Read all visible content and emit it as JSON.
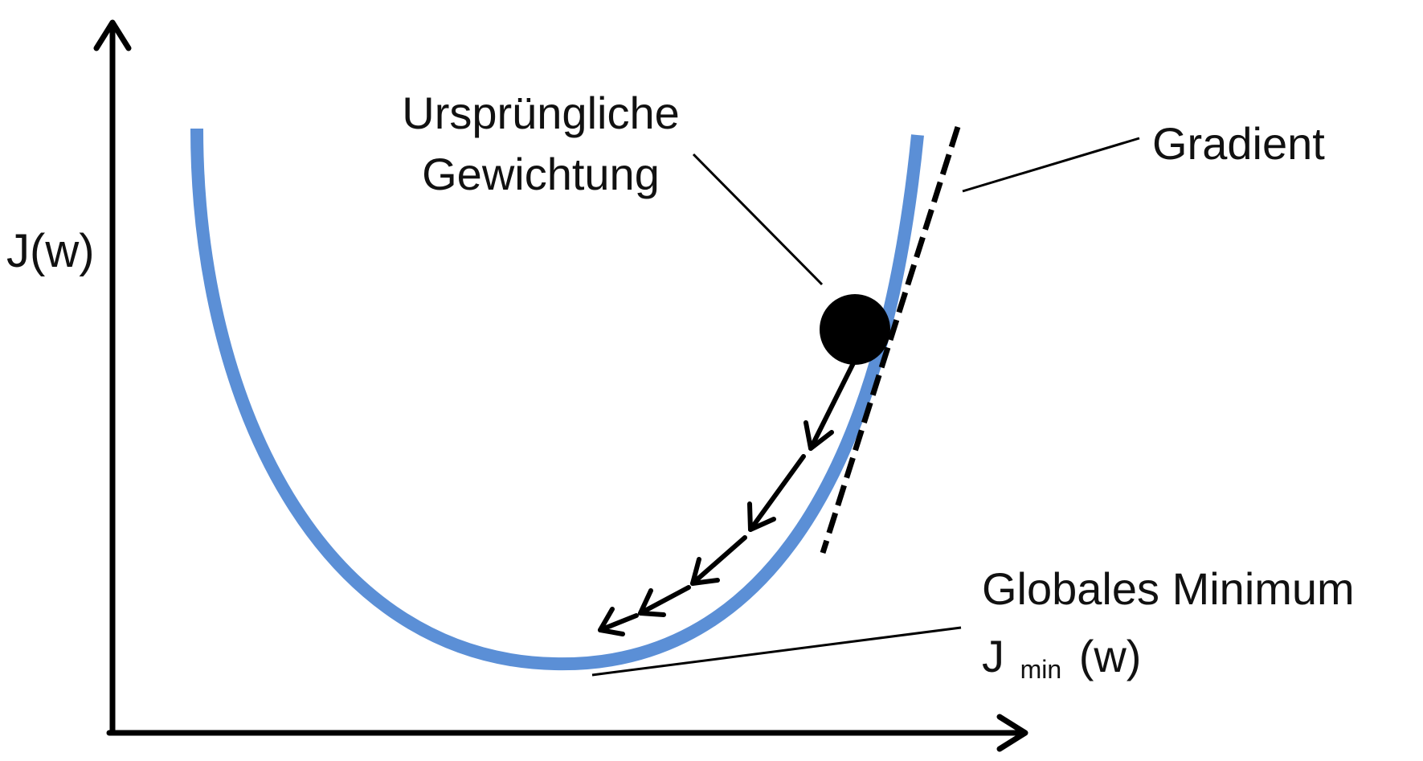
{
  "diagram": {
    "y_axis_label": "J(w)",
    "initial_weight_label_line1": "Ursprüngliche",
    "initial_weight_label_line2": "Gewichtung",
    "gradient_label": "Gradient",
    "global_minimum_label": "Globales Minimum",
    "jmin_main": "J",
    "jmin_subscript": "min",
    "jmin_suffix": "(w)",
    "colors": {
      "curve": "#5b8fd6",
      "ink": "#000000",
      "background": "#ffffff"
    }
  }
}
